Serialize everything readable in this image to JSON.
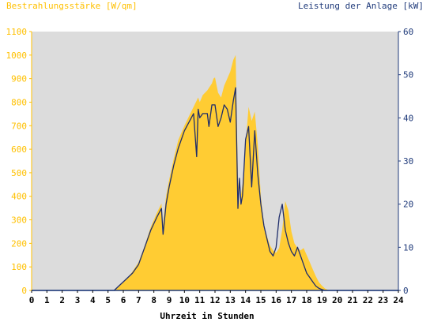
{
  "chart_data": {
    "type": "area",
    "left_axis_title": "Bestrahlungsstärke [W/qm]",
    "right_axis_title": "Leistung der Anlage [kW]",
    "xlabel": "Uhrzeit in Stunden",
    "xlim": [
      0,
      24
    ],
    "ylim_left": [
      0,
      1100
    ],
    "ylim_right": [
      0,
      60
    ],
    "x_ticks": [
      "0",
      "1",
      "2",
      "3",
      "4",
      "5",
      "6",
      "7",
      "8",
      "9",
      "10",
      "11",
      "12",
      "13",
      "14",
      "15",
      "16",
      "17",
      "18",
      "19",
      "20",
      "21",
      "22",
      "23",
      "24"
    ],
    "y_ticks_left": [
      "0",
      "100",
      "200",
      "300",
      "400",
      "500",
      "600",
      "700",
      "800",
      "900",
      "1000",
      "1100"
    ],
    "y_ticks_right": [
      "0",
      "10",
      "20",
      "30",
      "40",
      "50",
      "60"
    ],
    "grid": false,
    "colors": {
      "plot_background": "#dcdcdc",
      "irradiance_fill": "#ffcc33",
      "power_line": "#1f2d6b",
      "left_axis_text": "#ffc000",
      "right_axis_text": "#1f3a7a",
      "x_axis_text": "#000000"
    },
    "series": [
      {
        "axis": "left",
        "style": "filled-area",
        "x": [
          0,
          5.4,
          5.7,
          6.0,
          6.3,
          6.6,
          7.0,
          7.4,
          7.8,
          8.2,
          8.5,
          8.55,
          8.8,
          9.0,
          9.3,
          9.6,
          10.0,
          10.3,
          10.6,
          10.9,
          11.0,
          11.2,
          11.5,
          11.8,
          11.9,
          12.0,
          12.2,
          12.4,
          12.6,
          12.8,
          13.0,
          13.2,
          13.35,
          13.5,
          13.6,
          13.8,
          14.0,
          14.2,
          14.4,
          14.6,
          14.8,
          15.0,
          15.2,
          15.4,
          15.6,
          15.8,
          16.0,
          16.2,
          16.4,
          16.6,
          16.8,
          17.0,
          17.2,
          17.4,
          17.6,
          17.8,
          18.0,
          18.2,
          18.4,
          18.6,
          18.8,
          19.0,
          19.2,
          19.4,
          19.6,
          20.0,
          24
        ],
        "y": [
          0,
          0,
          15,
          35,
          55,
          80,
          120,
          190,
          270,
          330,
          370,
          250,
          400,
          470,
          560,
          640,
          700,
          740,
          780,
          820,
          800,
          830,
          850,
          880,
          900,
          905,
          840,
          820,
          870,
          900,
          930,
          980,
          1000,
          480,
          360,
          450,
          620,
          780,
          720,
          760,
          620,
          400,
          280,
          230,
          190,
          170,
          160,
          180,
          260,
          380,
          340,
          250,
          200,
          180,
          170,
          180,
          150,
          120,
          90,
          60,
          35,
          20,
          8,
          2,
          0,
          0,
          0
        ]
      },
      {
        "axis": "right",
        "style": "line",
        "x": [
          0,
          5.4,
          5.7,
          6.0,
          6.3,
          6.6,
          7.0,
          7.4,
          7.8,
          8.2,
          8.5,
          8.6,
          8.8,
          9.0,
          9.3,
          9.6,
          10.0,
          10.3,
          10.6,
          10.8,
          10.9,
          11.0,
          11.2,
          11.5,
          11.6,
          11.8,
          12.0,
          12.2,
          12.4,
          12.6,
          12.8,
          13.0,
          13.2,
          13.35,
          13.5,
          13.6,
          13.7,
          13.8,
          14.0,
          14.2,
          14.4,
          14.6,
          14.8,
          15.0,
          15.2,
          15.4,
          15.6,
          15.8,
          16.0,
          16.2,
          16.4,
          16.6,
          16.8,
          17.0,
          17.2,
          17.4,
          17.6,
          17.8,
          18.0,
          18.2,
          18.4,
          18.6,
          18.8,
          19.0,
          19.2,
          19.4,
          19.6,
          20.0,
          24
        ],
        "y": [
          0,
          0,
          1,
          2,
          3,
          4,
          6,
          10,
          14,
          17,
          19,
          13,
          20,
          24,
          29,
          33,
          37,
          39,
          41,
          31,
          42,
          40,
          41,
          41,
          38,
          43,
          43,
          38,
          40,
          43,
          42,
          39,
          44,
          47,
          19,
          26,
          20,
          22,
          35,
          38,
          24,
          37,
          27,
          20,
          15,
          12,
          9,
          8,
          10,
          17,
          20,
          14,
          11,
          9,
          8,
          10,
          8,
          6,
          4,
          3,
          2,
          1,
          0.5,
          0.2,
          0,
          0,
          0,
          0,
          0
        ]
      }
    ]
  }
}
